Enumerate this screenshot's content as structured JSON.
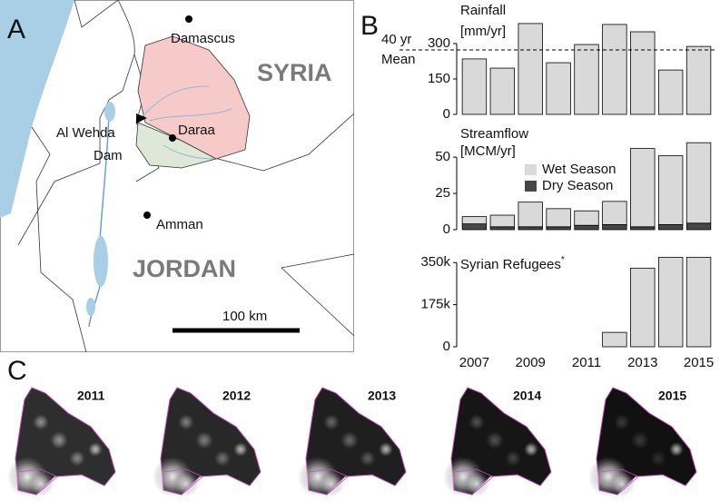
{
  "panels": {
    "a": "A",
    "b": "B",
    "c": "C"
  },
  "map": {
    "cities": [
      "Damascus",
      "Daraa",
      "Amman"
    ],
    "countries": [
      "SYRIA",
      "JORDAN"
    ],
    "dam": [
      "Al Wehda",
      "Dam"
    ],
    "scale_label": "100 km"
  },
  "chart_data": [
    {
      "type": "bar",
      "title": [
        "Rainfall",
        "[mm/yr]"
      ],
      "values": [
        235,
        196,
        385,
        219,
        296,
        381,
        350,
        188,
        288
      ],
      "color": "#d9d9d9",
      "ylim": [
        0,
        400
      ],
      "yticks": [
        0,
        150,
        300
      ],
      "reference_line": 273,
      "reference_label": [
        "40 yr",
        "Mean"
      ]
    },
    {
      "type": "stacked_bar",
      "title": [
        "Streamflow",
        "[MCM/yr]"
      ],
      "series": [
        {
          "name": "Dry Season",
          "color": "#474747",
          "values": [
            4,
            2,
            2,
            2,
            3,
            3.5,
            2,
            3.5,
            4.5
          ]
        },
        {
          "name": "Wet Season",
          "color": "#d9d9d9",
          "values": [
            5,
            8,
            17,
            12.5,
            10,
            16,
            54,
            47.5,
            55.5
          ]
        }
      ],
      "ylim": [
        0,
        62
      ],
      "yticks": [
        0,
        25,
        50
      ]
    },
    {
      "type": "bar",
      "title": [
        "Syrian Refugees"
      ],
      "title_mark": "*",
      "values": [
        0,
        0,
        0,
        0,
        0,
        60000,
        327000,
        372000,
        372000
      ],
      "color": "#d9d9d9",
      "ylim": [
        0,
        400000
      ],
      "yticks": [
        0,
        {
          "value": 175000,
          "label": "175k"
        },
        {
          "value": 350000,
          "label": "350k"
        }
      ],
      "categories": [
        "2007",
        null,
        "2009",
        null,
        "2011",
        null,
        "2013",
        null,
        "2015"
      ]
    }
  ],
  "night_lights": {
    "years": [
      "2011",
      "2012",
      "2013",
      "2014",
      "2015"
    ]
  }
}
